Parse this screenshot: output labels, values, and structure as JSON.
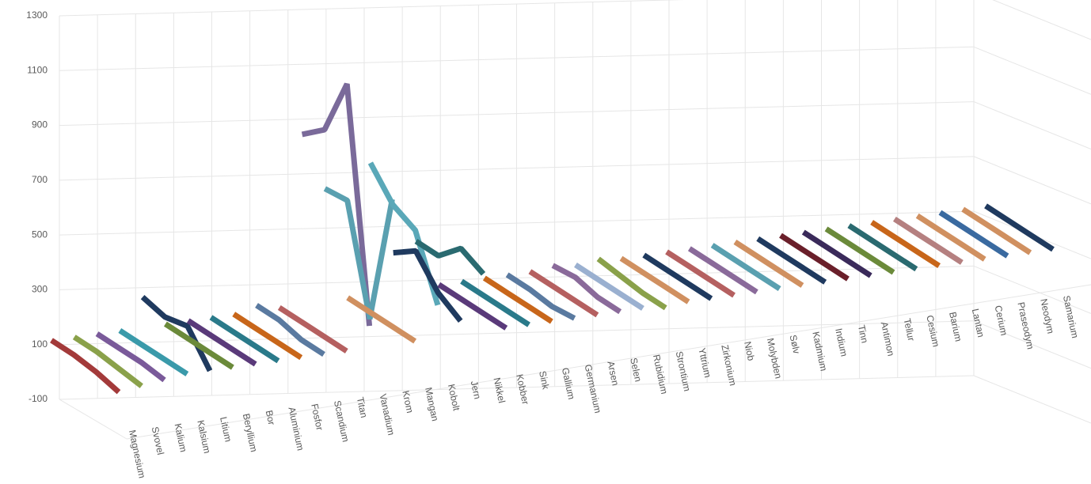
{
  "chart_data": {
    "type": "line3d",
    "categories": [
      null,
      null,
      null,
      null
    ],
    "ylim": [
      -100,
      1300
    ],
    "yticks": [
      -100,
      100,
      300,
      500,
      700,
      900,
      1100,
      1300
    ],
    "grid": true,
    "series": [
      {
        "name": "Magnesium",
        "color": "#a33a3a",
        "values": [
          0,
          0,
          -10,
          -30
        ]
      },
      {
        "name": "Svovel",
        "color": "#8aa14a",
        "values": [
          0,
          0,
          -10,
          -20
        ]
      },
      {
        "name": "Kalium",
        "color": "#7a5a9a",
        "values": [
          0,
          0,
          0,
          -10
        ]
      },
      {
        "name": "Kalsium",
        "color": "#3a9aaa",
        "values": [
          0,
          0,
          0,
          0
        ]
      },
      {
        "name": "Litium",
        "color": "#1f3a5f",
        "values": [
          110,
          90,
          110,
          0
        ]
      },
      {
        "name": "Beryllium",
        "color": "#6b8a3a",
        "values": [
          0,
          0,
          0,
          0
        ]
      },
      {
        "name": "Bor",
        "color": "#5a3a7a",
        "values": [
          0,
          0,
          0,
          0
        ]
      },
      {
        "name": "Aluminium",
        "color": "#2a7a8a",
        "values": [
          0,
          0,
          0,
          0
        ]
      },
      {
        "name": "Fosfor",
        "color": "#c8661a",
        "values": [
          0,
          0,
          0,
          0
        ]
      },
      {
        "name": "Scandium",
        "color": "#5a7aa0",
        "values": [
          20,
          20,
          0,
          0
        ]
      },
      {
        "name": "Titan",
        "color": "#b56060",
        "values": [
          0,
          0,
          0,
          0
        ]
      },
      {
        "name": "Vanadium",
        "color": "#7a6a9a",
        "values": [
          620,
          690,
          910,
          80
        ]
      },
      {
        "name": "Krom",
        "color": "#5aa0b0",
        "values": [
          410,
          420,
          40,
          530
        ]
      },
      {
        "name": "Mangan",
        "color": "#d09060",
        "values": [
          0,
          0,
          0,
          0
        ]
      },
      {
        "name": "Kobolt",
        "color": "#5aa8b8",
        "values": [
          480,
          380,
          340,
          120
        ]
      },
      {
        "name": "Jern",
        "color": "#1f3a5f",
        "values": [
          140,
          200,
          100,
          50
        ]
      },
      {
        "name": "Nikkel",
        "color": "#2a6a70",
        "values": [
          170,
          170,
          250,
          210
        ]
      },
      {
        "name": "Kobber",
        "color": "#5a3a7a",
        "values": [
          0,
          0,
          0,
          0
        ]
      },
      {
        "name": "Sink",
        "color": "#2a7a8a",
        "values": [
          0,
          0,
          0,
          0
        ]
      },
      {
        "name": "Gallium",
        "color": "#c8661a",
        "values": [
          0,
          0,
          0,
          0
        ]
      },
      {
        "name": "Germanium",
        "color": "#5a7aa0",
        "values": [
          0,
          0,
          -10,
          0
        ]
      },
      {
        "name": "Arsen",
        "color": "#b56060",
        "values": [
          0,
          0,
          0,
          0
        ]
      },
      {
        "name": "Selen",
        "color": "#8a6a9a",
        "values": [
          10,
          20,
          0,
          0
        ]
      },
      {
        "name": "Rubidium",
        "color": "#9ab0d0",
        "values": [
          0,
          0,
          0,
          0
        ]
      },
      {
        "name": "Strontium",
        "color": "#8aa14a",
        "values": [
          10,
          0,
          -10,
          -10
        ]
      },
      {
        "name": "Yttrium",
        "color": "#d09060",
        "values": [
          0,
          0,
          0,
          0
        ]
      },
      {
        "name": "Zirkonium",
        "color": "#1f3a5f",
        "values": [
          0,
          0,
          0,
          0
        ]
      },
      {
        "name": "Niob",
        "color": "#b56060",
        "values": [
          0,
          0,
          0,
          0
        ]
      },
      {
        "name": "Molybden",
        "color": "#8a6a9a",
        "values": [
          0,
          0,
          0,
          0
        ]
      },
      {
        "name": "Sølv",
        "color": "#5aa0b0",
        "values": [
          0,
          0,
          0,
          0
        ]
      },
      {
        "name": "Kadmium",
        "color": "#d09060",
        "values": [
          0,
          0,
          0,
          0
        ]
      },
      {
        "name": "Indium",
        "color": "#1f3a5f",
        "values": [
          0,
          0,
          0,
          0
        ]
      },
      {
        "name": "Tinn",
        "color": "#6a1f2a",
        "values": [
          0,
          0,
          0,
          0
        ]
      },
      {
        "name": "Antimon",
        "color": "#3a2a5a",
        "values": [
          0,
          0,
          0,
          0
        ]
      },
      {
        "name": "Tellur",
        "color": "#6b8a3a",
        "values": [
          0,
          0,
          0,
          0
        ]
      },
      {
        "name": "Cesium",
        "color": "#2a6a70",
        "values": [
          0,
          0,
          0,
          0
        ]
      },
      {
        "name": "Barium",
        "color": "#c8661a",
        "values": [
          0,
          0,
          0,
          0
        ]
      },
      {
        "name": "Lantan",
        "color": "#b58080",
        "values": [
          0,
          0,
          0,
          0
        ]
      },
      {
        "name": "Cerium",
        "color": "#d09060",
        "values": [
          0,
          0,
          0,
          0
        ]
      },
      {
        "name": "Praseodym",
        "color": "#3a6aa0",
        "values": [
          0,
          0,
          0,
          0
        ]
      },
      {
        "name": "Neodym",
        "color": "#d09060",
        "values": [
          0,
          0,
          0,
          0
        ]
      },
      {
        "name": "Samarium",
        "color": "#1f3a5f",
        "values": [
          0,
          0,
          0,
          0
        ]
      }
    ]
  }
}
